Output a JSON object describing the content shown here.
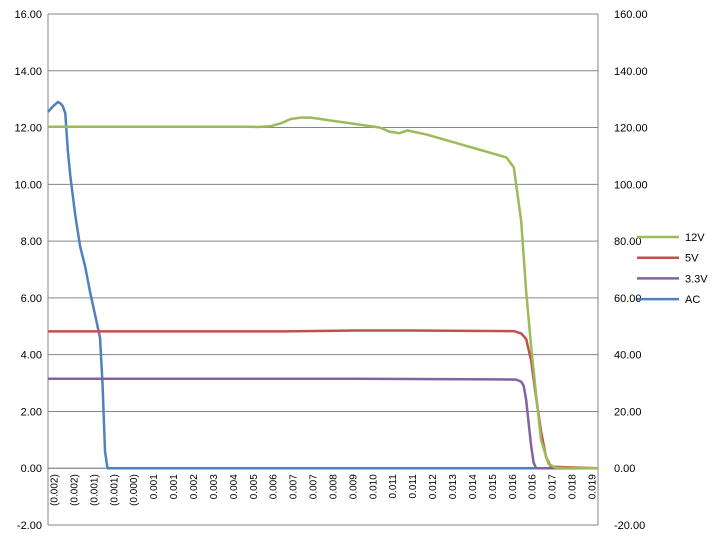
{
  "chart_data": {
    "type": "line",
    "title": "",
    "xlabel": "",
    "ylabel": "",
    "y_left": {
      "min": -2,
      "max": 16,
      "step": 2,
      "tick_labels": [
        "-2.00",
        "0.00",
        "2.00",
        "4.00",
        "6.00",
        "8.00",
        "10.00",
        "12.00",
        "14.00",
        "16.00"
      ]
    },
    "y_right": {
      "min": -20,
      "max": 160,
      "step": 20,
      "tick_labels": [
        "-20.00",
        "0.00",
        "20.00",
        "40.00",
        "60.00",
        "80.00",
        "100.00",
        "120.00",
        "140.00",
        "160.00"
      ]
    },
    "x_range": [
      -0.0025,
      0.0197
    ],
    "x_tick_labels": [
      "(0.002)",
      "(0.002)",
      "(0.001)",
      "(0.001)",
      "(0.000)",
      "0.001",
      "0.001",
      "0.002",
      "0.003",
      "0.004",
      "0.005",
      "0.006",
      "0.007",
      "0.007",
      "0.008",
      "0.009",
      "0.010",
      "0.011",
      "0.011",
      "0.012",
      "0.013",
      "0.014",
      "0.015",
      "0.016",
      "0.016",
      "0.017",
      "0.018",
      "0.019"
    ],
    "grid": "horizontal",
    "legend_position": "right",
    "series": [
      {
        "name": "12V",
        "color": "#9BBB59",
        "axis": "left",
        "x": [
          -0.0025,
          0.0055,
          0.006,
          0.0065,
          0.0069,
          0.0073,
          0.0077,
          0.0081,
          0.0085,
          0.0089,
          0.0093,
          0.0097,
          0.0101,
          0.0105,
          0.0109,
          0.0113,
          0.0117,
          0.012,
          0.0128,
          0.014,
          0.0152,
          0.016,
          0.0163,
          0.0166,
          0.0168,
          0.017,
          0.0172,
          0.0174,
          0.0177,
          0.018,
          0.0197
        ],
        "y": [
          12.03,
          12.03,
          12.02,
          12.05,
          12.15,
          12.3,
          12.35,
          12.35,
          12.3,
          12.25,
          12.2,
          12.15,
          12.1,
          12.05,
          12.0,
          11.85,
          11.8,
          11.9,
          11.75,
          11.45,
          11.15,
          10.95,
          10.6,
          8.7,
          6.2,
          4.3,
          2.6,
          1.0,
          0.15,
          0.02,
          0.0
        ]
      },
      {
        "name": "5V",
        "color": "#C0504D",
        "axis": "left",
        "x": [
          -0.0025,
          0.007,
          0.01,
          0.012,
          0.0163,
          0.0166,
          0.0168,
          0.017,
          0.0172,
          0.0174,
          0.0176,
          0.0178,
          0.0197
        ],
        "y": [
          4.82,
          4.82,
          4.85,
          4.85,
          4.83,
          4.75,
          4.55,
          3.8,
          2.5,
          1.3,
          0.4,
          0.05,
          0.0
        ]
      },
      {
        "name": "3.3V",
        "color": "#8064A2",
        "axis": "left",
        "x": [
          -0.0025,
          0.005,
          0.01,
          0.0155,
          0.0164,
          0.0166,
          0.0167,
          0.0168,
          0.0169,
          0.017,
          0.0171,
          0.0172,
          0.0197
        ],
        "y": [
          3.15,
          3.15,
          3.15,
          3.13,
          3.12,
          3.05,
          2.9,
          2.4,
          1.6,
          0.8,
          0.2,
          0.0,
          0.0
        ]
      },
      {
        "name": "AC",
        "color": "#4F81BD",
        "axis": "right",
        "x": [
          -0.0025,
          -0.0023,
          -0.0021,
          -0.002,
          -0.0019,
          -0.0018,
          -0.0017,
          -0.0016,
          -0.0014,
          -0.0012,
          -0.001,
          -0.0008,
          -0.0006,
          -0.0004,
          -0.0003,
          -0.0002,
          -0.0001,
          0.0,
          0.0001,
          0.0002,
          0.005,
          0.01,
          0.015,
          0.0197
        ],
        "y": [
          125.5,
          127.5,
          129.0,
          128.5,
          127.5,
          125.0,
          112.0,
          103.0,
          89.0,
          78.0,
          71.0,
          62.0,
          54.0,
          46.0,
          30.0,
          6.0,
          0.0,
          0.0,
          0.0,
          0.0,
          0.0,
          0.0,
          0.0,
          0.0
        ]
      }
    ]
  }
}
